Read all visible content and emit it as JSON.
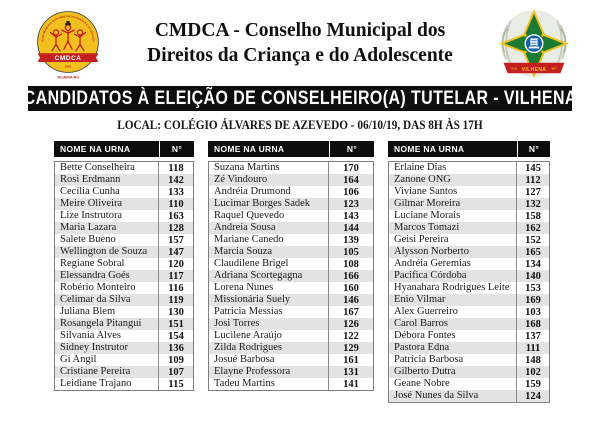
{
  "header": {
    "title_line1": "CMDCA - Conselho Municipal dos",
    "title_line2": "Direitos da Criança e do Adolescente",
    "left_logo": {
      "arc_text": "CONSELHO MUNICIPAL DOS DIREITOS DA CRIANÇA E DO ADOLESCENTE",
      "acronym": "CMDCA",
      "year": "1991",
      "city": "VILHENA-RO"
    },
    "right_logo": {
      "city": "VILHENA",
      "date_left": "23.11",
      "date_right": "1977"
    }
  },
  "banner": "CANDIDATOS À ELEIÇÃO DE CONSELHEIRO(A) TUTELAR - VILHENA",
  "location_line": "LOCAL: COLÉGIO ÁLVARES DE AZEVEDO - 06/10/19, DAS 8H ÀS 17H",
  "table_header": {
    "name": "NOME NA URNA",
    "number": "N°"
  },
  "colors": {
    "banner_bg": "#0d0d0d",
    "row_alt": "#e3e3e3",
    "cmdca_yellow": "#f2c01e",
    "cmdca_red": "#c4201f",
    "coat_green": "#1b7a34",
    "coat_blue": "#1262a8"
  },
  "columns": [
    {
      "rows": [
        {
          "name": "Bette Conselheira",
          "number": "118"
        },
        {
          "name": "Rosi Erdmann",
          "number": "142"
        },
        {
          "name": "Cecília Cunha",
          "number": "133"
        },
        {
          "name": "Meire Oliveira",
          "number": "110"
        },
        {
          "name": "Lize Instrutora",
          "number": "163"
        },
        {
          "name": "Maria Lazara",
          "number": "128"
        },
        {
          "name": "Salete Bueno",
          "number": "157"
        },
        {
          "name": "Wellington de Souza",
          "number": "147"
        },
        {
          "name": "Regiane Sobral",
          "number": "120"
        },
        {
          "name": "Elessandra Goés",
          "number": "117"
        },
        {
          "name": "Robério Monteiro",
          "number": "116"
        },
        {
          "name": "Celimar da Silva",
          "number": "119"
        },
        {
          "name": "Juliana Blem",
          "number": "130"
        },
        {
          "name": "Rosangela Pitangui",
          "number": "151"
        },
        {
          "name": "Silvania Alves",
          "number": "154"
        },
        {
          "name": "Sidney Instrutor",
          "number": "136"
        },
        {
          "name": "Gi Angil",
          "number": "109"
        },
        {
          "name": "Cristiane Pereira",
          "number": "107"
        },
        {
          "name": "Leidiane Trajano",
          "number": "115"
        }
      ]
    },
    {
      "rows": [
        {
          "name": "Suzana Martins",
          "number": "170"
        },
        {
          "name": "Zé Vindouro",
          "number": "164"
        },
        {
          "name": "Andréia Drumond",
          "number": "106"
        },
        {
          "name": "Lucimar Borges Sadek",
          "number": "123"
        },
        {
          "name": "Raquel Quevedo",
          "number": "143"
        },
        {
          "name": "Andreia Sousa",
          "number": "144"
        },
        {
          "name": "Mariane Canedo",
          "number": "139"
        },
        {
          "name": "Marcia Souza",
          "number": "105"
        },
        {
          "name": "Claudilene Brigel",
          "number": "108"
        },
        {
          "name": "Adriana Scortegagna",
          "number": "166"
        },
        {
          "name": "Lorena Nunes",
          "number": "160"
        },
        {
          "name": "Missionária Suely",
          "number": "146"
        },
        {
          "name": "Patricia Messias",
          "number": "167"
        },
        {
          "name": "Josi Torres",
          "number": "126"
        },
        {
          "name": "Lucilene Araújo",
          "number": "122"
        },
        {
          "name": "Zilda Rodrigues",
          "number": "129"
        },
        {
          "name": "Josué Barbosa",
          "number": "161"
        },
        {
          "name": "Elayne Professora",
          "number": "131"
        },
        {
          "name": "Tadeu Martins",
          "number": "141"
        }
      ]
    },
    {
      "rows": [
        {
          "name": "Erlaine Dias",
          "number": "145"
        },
        {
          "name": "Zanone ONG",
          "number": "112"
        },
        {
          "name": "Viviane Santos",
          "number": "127"
        },
        {
          "name": "Gilmar Moreira",
          "number": "132"
        },
        {
          "name": "Luciane Morais",
          "number": "158"
        },
        {
          "name": "Marcos Tomazi",
          "number": "162"
        },
        {
          "name": "Geisi Pereira",
          "number": "152"
        },
        {
          "name": "Alysson Norberto",
          "number": "165"
        },
        {
          "name": "Andréia Geremias",
          "number": "134"
        },
        {
          "name": "Pacifica Córdoba",
          "number": "140"
        },
        {
          "name": "Hyanahara Rodrigues Leite",
          "number": "153"
        },
        {
          "name": "Enio Vilmar",
          "number": "169"
        },
        {
          "name": "Alex Guerreiro",
          "number": "103"
        },
        {
          "name": "Carol Barros",
          "number": "168"
        },
        {
          "name": "Débora Fontes",
          "number": "137"
        },
        {
          "name": "Pastora Édna",
          "number": "111"
        },
        {
          "name": "Patrícia Barbosa",
          "number": "148"
        },
        {
          "name": "Gilberto Dutra",
          "number": "102"
        },
        {
          "name": "Geane Nobre",
          "number": "159"
        },
        {
          "name": "José Nunes da Silva",
          "number": "124"
        }
      ]
    }
  ]
}
